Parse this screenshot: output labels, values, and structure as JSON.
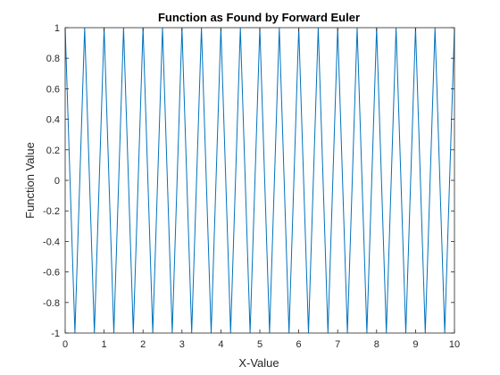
{
  "chart_data": {
    "type": "line",
    "title": "Function as Found by Forward Euler",
    "xlabel": "X-Value",
    "ylabel": "Function Value",
    "xlim": [
      0,
      10
    ],
    "ylim": [
      -1,
      1
    ],
    "xticks": [
      0,
      1,
      2,
      3,
      4,
      5,
      6,
      7,
      8,
      9,
      10
    ],
    "xtick_labels": [
      "0",
      "1",
      "2",
      "3",
      "4",
      "5",
      "6",
      "7",
      "8",
      "9",
      "10"
    ],
    "yticks": [
      -1,
      -0.8,
      -0.6,
      -0.4,
      -0.2,
      0,
      0.2,
      0.4,
      0.6,
      0.8,
      1
    ],
    "ytick_labels": [
      "-1",
      "-0.8",
      "-0.6",
      "-0.4",
      "-0.2",
      "0",
      "0.2",
      "0.4",
      "0.6",
      "0.8",
      "1"
    ],
    "grid": false,
    "line_color": "#0072BD",
    "series": [
      {
        "x": [
          0,
          0.25,
          0.5,
          0.75,
          1.0,
          1.25,
          1.5,
          1.75,
          2.0,
          2.25,
          2.5,
          2.75,
          3.0,
          3.25,
          3.5,
          3.75,
          4.0,
          4.25,
          4.5,
          4.75,
          5.0,
          5.25,
          5.5,
          5.75,
          6.0,
          6.25,
          6.5,
          6.75,
          7.0,
          7.25,
          7.5,
          7.75,
          8.0,
          8.25,
          8.5,
          8.75,
          9.0,
          9.25,
          9.5,
          9.75,
          10.0
        ],
        "y": [
          1,
          -1,
          1,
          -1,
          1,
          -1,
          1,
          -1,
          1,
          -1,
          1,
          -1,
          1,
          -1,
          1,
          -1,
          1,
          -1,
          1,
          -1,
          1,
          -1,
          1,
          -1,
          1,
          -1,
          1,
          -1,
          1,
          -1,
          1,
          -1,
          1,
          -1,
          1,
          -1,
          1,
          -1,
          1,
          -1,
          1
        ]
      }
    ]
  }
}
